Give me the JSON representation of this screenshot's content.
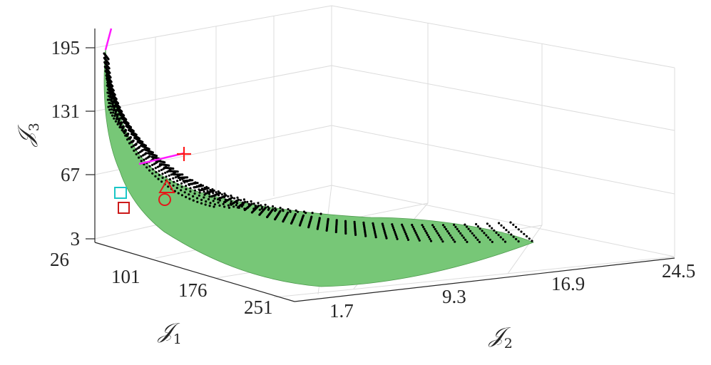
{
  "chart_data": {
    "type": "surface3d-scatter",
    "axes": {
      "x": {
        "label": "𝒥",
        "sub": "1",
        "ticks": [
          "26",
          "101",
          "176",
          "251"
        ],
        "range": [
          26,
          301
        ]
      },
      "y": {
        "label": "𝒥",
        "sub": "2",
        "ticks": [
          "1.7",
          "9.3",
          "16.9",
          "24.5"
        ],
        "range": [
          1.7,
          24.5
        ]
      },
      "z": {
        "label": "𝒥",
        "sub": "3",
        "ticks": [
          "3",
          "67",
          "131",
          "195"
        ],
        "range": [
          3,
          215
        ]
      }
    },
    "grid": true,
    "surface_color": "#77c777",
    "point_color": "#000000",
    "markers": [
      {
        "name": "cross",
        "shape": "plus",
        "color": "#ff1a1a"
      },
      {
        "name": "triangle",
        "shape": "triangle",
        "color": "#e31a1a"
      },
      {
        "name": "circle",
        "shape": "circle",
        "color": "#e31a1a"
      },
      {
        "name": "cyan-square",
        "shape": "square",
        "color": "#1ac7c7"
      },
      {
        "name": "red-square",
        "shape": "square",
        "color": "#cc1a1a"
      }
    ],
    "lines_color": "#ff1aff"
  }
}
